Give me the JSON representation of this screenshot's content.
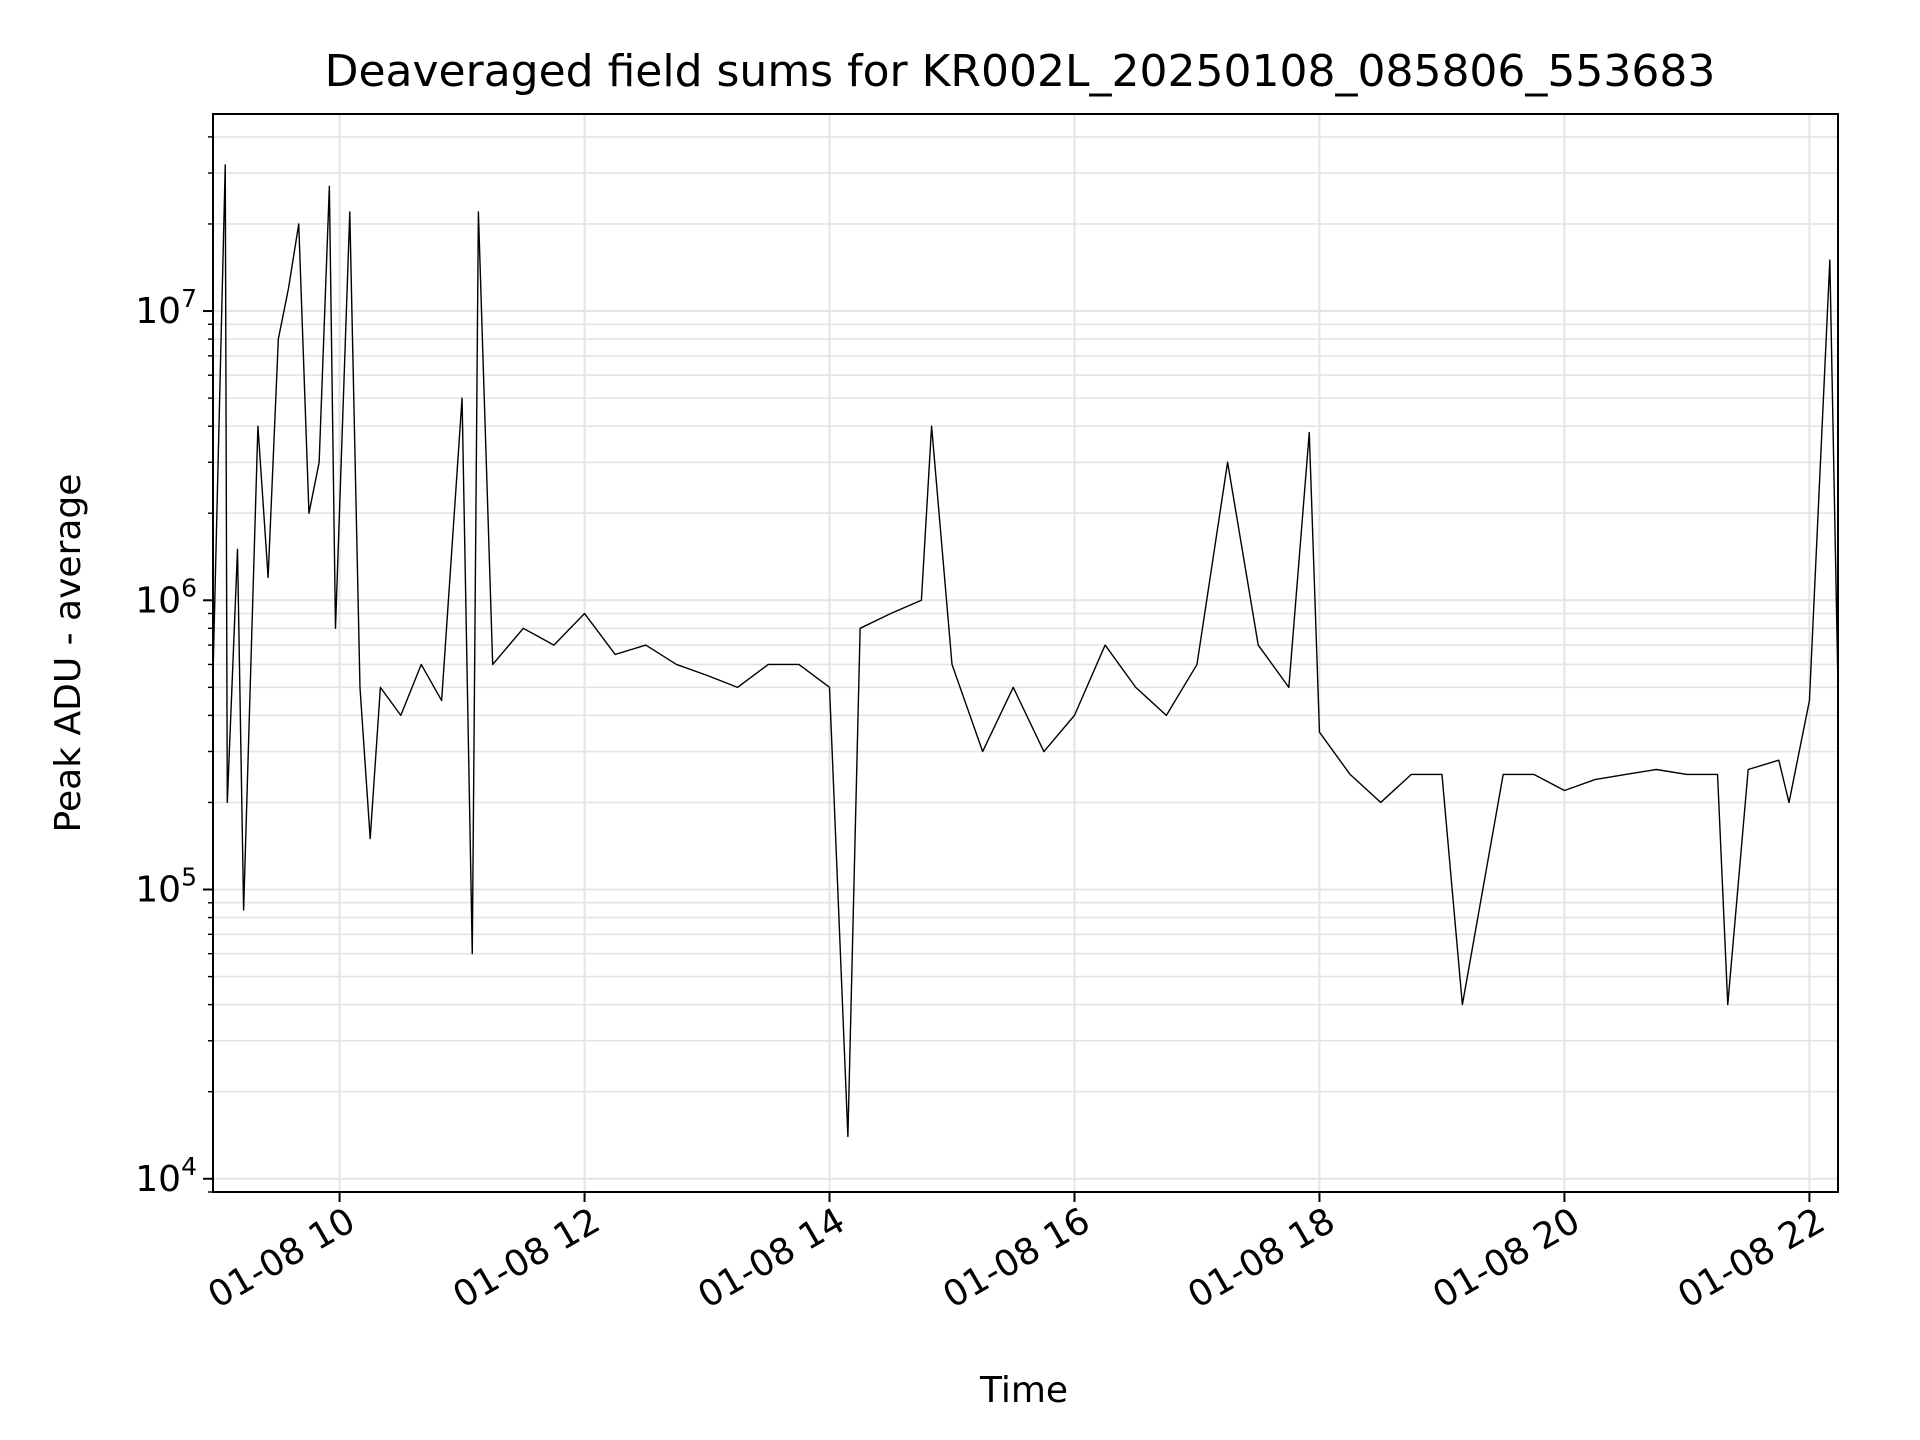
{
  "chart_data": {
    "type": "line",
    "title": "Deaveraged field sums for KR002L_20250108_085806_553683",
    "xlabel": "Time",
    "ylabel": "Peak ADU - average",
    "y_scale": "log",
    "ylim": [
      9000,
      48000000
    ],
    "xlim": [
      "2025-01-08T08:58",
      "2025-01-08T22:14"
    ],
    "grid": true,
    "x_ticks": [
      {
        "t": "2025-01-08T10:00",
        "label": "01-08 10"
      },
      {
        "t": "2025-01-08T12:00",
        "label": "01-08 12"
      },
      {
        "t": "2025-01-08T14:00",
        "label": "01-08 14"
      },
      {
        "t": "2025-01-08T16:00",
        "label": "01-08 16"
      },
      {
        "t": "2025-01-08T18:00",
        "label": "01-08 18"
      },
      {
        "t": "2025-01-08T20:00",
        "label": "01-08 20"
      },
      {
        "t": "2025-01-08T22:00",
        "label": "01-08 22"
      }
    ],
    "y_ticks": [
      {
        "value": 10000,
        "base": "10",
        "exp": "4"
      },
      {
        "value": 100000,
        "base": "10",
        "exp": "5"
      },
      {
        "value": 1000000,
        "base": "10",
        "exp": "6"
      },
      {
        "value": 10000000,
        "base": "10",
        "exp": "7"
      }
    ],
    "series_color": "#000000",
    "series": [
      {
        "x": [
          "2025-01-08T08:58",
          "2025-01-08T09:04",
          "2025-01-08T09:05",
          "2025-01-08T09:10",
          "2025-01-08T09:13",
          "2025-01-08T09:20",
          "2025-01-08T09:25",
          "2025-01-08T09:30",
          "2025-01-08T09:35",
          "2025-01-08T09:40",
          "2025-01-08T09:45",
          "2025-01-08T09:50",
          "2025-01-08T09:55",
          "2025-01-08T09:58",
          "2025-01-08T10:05",
          "2025-01-08T10:10",
          "2025-01-08T10:15",
          "2025-01-08T10:20",
          "2025-01-08T10:30",
          "2025-01-08T10:40",
          "2025-01-08T10:50",
          "2025-01-08T11:00",
          "2025-01-08T11:05",
          "2025-01-08T11:08",
          "2025-01-08T11:15",
          "2025-01-08T11:30",
          "2025-01-08T11:45",
          "2025-01-08T12:00",
          "2025-01-08T12:15",
          "2025-01-08T12:30",
          "2025-01-08T12:45",
          "2025-01-08T13:00",
          "2025-01-08T13:15",
          "2025-01-08T13:30",
          "2025-01-08T13:45",
          "2025-01-08T14:00",
          "2025-01-08T14:09",
          "2025-01-08T14:15",
          "2025-01-08T14:30",
          "2025-01-08T14:45",
          "2025-01-08T14:50",
          "2025-01-08T15:00",
          "2025-01-08T15:15",
          "2025-01-08T15:30",
          "2025-01-08T15:45",
          "2025-01-08T16:00",
          "2025-01-08T16:15",
          "2025-01-08T16:30",
          "2025-01-08T16:45",
          "2025-01-08T17:00",
          "2025-01-08T17:15",
          "2025-01-08T17:30",
          "2025-01-08T17:45",
          "2025-01-08T17:55",
          "2025-01-08T18:00",
          "2025-01-08T18:15",
          "2025-01-08T18:30",
          "2025-01-08T18:45",
          "2025-01-08T19:00",
          "2025-01-08T19:10",
          "2025-01-08T19:30",
          "2025-01-08T19:45",
          "2025-01-08T20:00",
          "2025-01-08T20:15",
          "2025-01-08T20:30",
          "2025-01-08T20:45",
          "2025-01-08T21:00",
          "2025-01-08T21:15",
          "2025-01-08T21:20",
          "2025-01-08T21:30",
          "2025-01-08T21:45",
          "2025-01-08T21:50",
          "2025-01-08T22:00",
          "2025-01-08T22:10",
          "2025-01-08T22:14"
        ],
        "y": [
          550000,
          32000000,
          200000,
          1500000,
          85000,
          4000000,
          1200000,
          8000000,
          12000000,
          20000000,
          2000000,
          3000000,
          27000000,
          800000,
          22000000,
          500000,
          150000,
          500000,
          400000,
          600000,
          450000,
          5000000,
          60000,
          22000000,
          600000,
          800000,
          700000,
          900000,
          650000,
          700000,
          600000,
          550000,
          500000,
          600000,
          600000,
          500000,
          14000,
          800000,
          900000,
          1000000,
          4000000,
          600000,
          300000,
          500000,
          300000,
          400000,
          700000,
          500000,
          400000,
          600000,
          3000000,
          700000,
          500000,
          3800000,
          350000,
          250000,
          200000,
          250000,
          250000,
          40000,
          250000,
          250000,
          220000,
          240000,
          250000,
          260000,
          250000,
          250000,
          40000,
          260000,
          280000,
          200000,
          450000,
          15000000,
          500000
        ]
      }
    ]
  }
}
